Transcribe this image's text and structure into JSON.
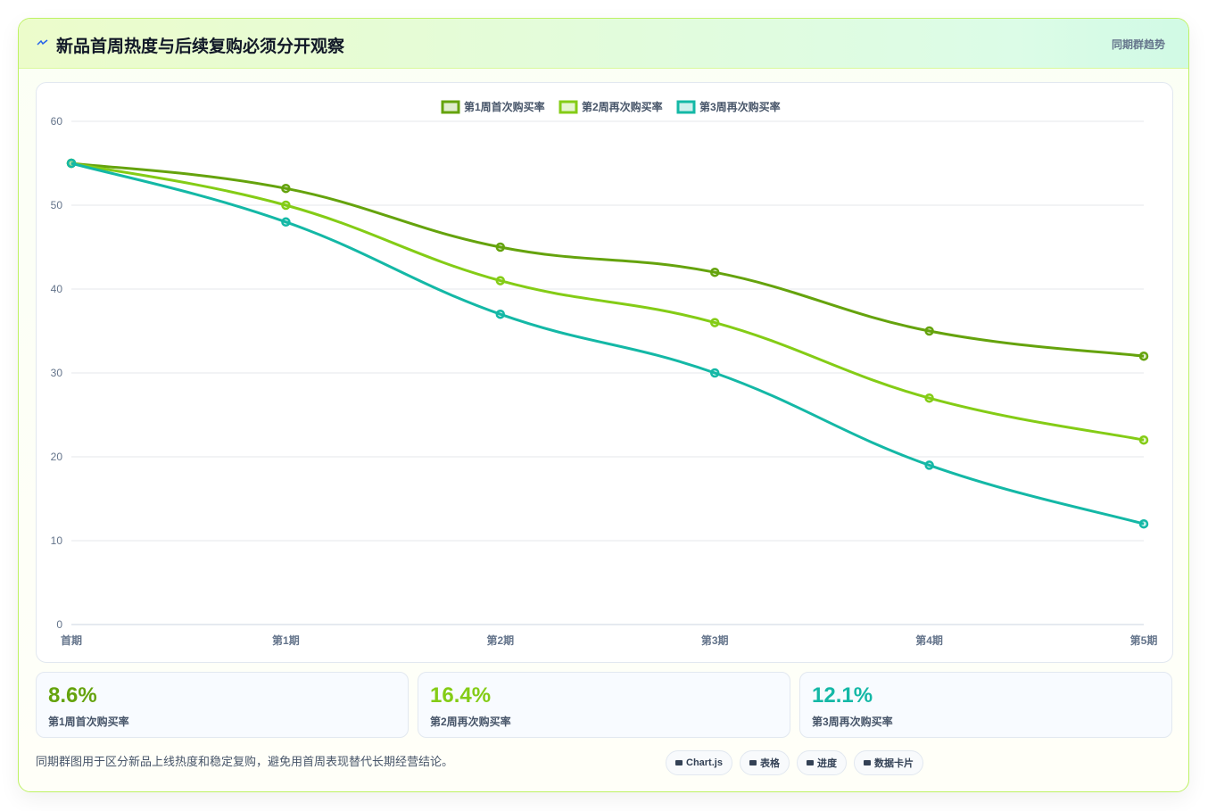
{
  "header": {
    "title": "新品首周热度与后续复购必须分开观察",
    "tag": "同期群趋势"
  },
  "chart_data": {
    "type": "line",
    "categories": [
      "首期",
      "第1期",
      "第2期",
      "第3期",
      "第4期",
      "第5期"
    ],
    "series": [
      {
        "name": "第1周首次购买率",
        "color": "#65a30d",
        "values": [
          55,
          52,
          45,
          42,
          35,
          32
        ]
      },
      {
        "name": "第2周再次购买率",
        "color": "#84cc16",
        "values": [
          55,
          50,
          41,
          36,
          27,
          22
        ]
      },
      {
        "name": "第3周再次购买率",
        "color": "#14b8a6",
        "values": [
          55,
          48,
          37,
          30,
          19,
          12
        ]
      }
    ],
    "ylim": [
      0,
      60
    ],
    "yticks": [
      0,
      10,
      20,
      30,
      40,
      50,
      60
    ],
    "grid": true,
    "legend": "top"
  },
  "stats": [
    {
      "value": "8.6%",
      "label": "第1周首次购买率",
      "color": "#65a30d"
    },
    {
      "value": "16.4%",
      "label": "第2周再次购买率",
      "color": "#84cc16"
    },
    {
      "value": "12.1%",
      "label": "第3周再次购买率",
      "color": "#14b8a6"
    }
  ],
  "footer": {
    "note": "同期群图用于区分新品上线热度和稳定复购，避免用首周表现替代长期经营结论。",
    "chips": [
      "Chart.js",
      "表格",
      "进度",
      "数据卡片"
    ]
  }
}
